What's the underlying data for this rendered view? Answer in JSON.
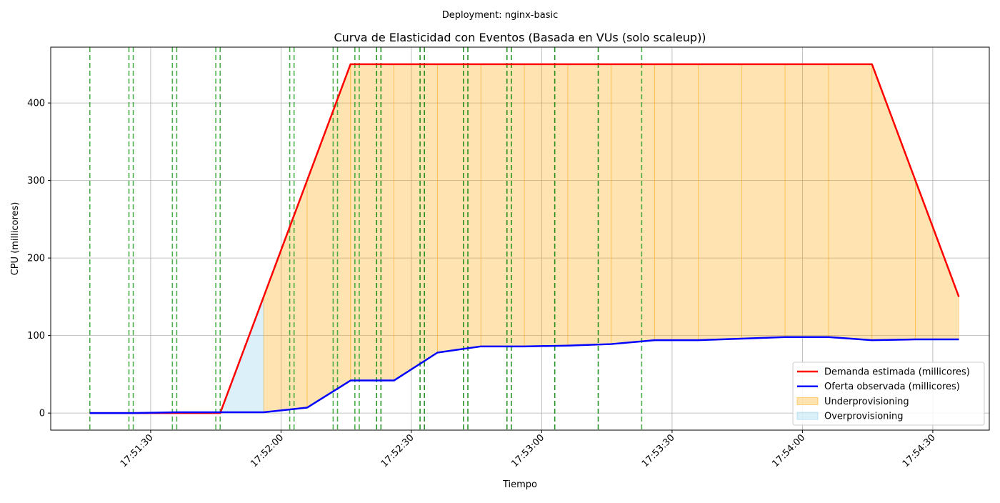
{
  "suptitle": "Deployment: nginx-basic",
  "chart_data": {
    "type": "line",
    "title": "Curva de Elasticidad con Eventos (Basada en VUs (solo scaleup))",
    "xlabel": "Tiempo",
    "ylabel": "CPU (millicores)",
    "x_range": [
      "17:51:07",
      "17:54:43"
    ],
    "y_range": [
      -22,
      472
    ],
    "y_ticks": [
      0,
      100,
      200,
      300,
      400
    ],
    "x_ticks": [
      "17:51:30",
      "17:52:00",
      "17:52:30",
      "17:53:00",
      "17:53:30",
      "17:54:00",
      "17:54:30"
    ],
    "grid": true,
    "legend_position": "lower right",
    "series": [
      {
        "name": "Demanda estimada (millicores)",
        "color": "#ff0000",
        "points": [
          [
            "17:51:16",
            0
          ],
          [
            "17:51:26",
            0
          ],
          [
            "17:51:36",
            0
          ],
          [
            "17:51:46",
            0
          ],
          [
            "17:51:56",
            150
          ],
          [
            "17:52:06",
            300
          ],
          [
            "17:52:16",
            450
          ],
          [
            "17:52:26",
            450
          ],
          [
            "17:52:36",
            450
          ],
          [
            "17:52:46",
            450
          ],
          [
            "17:52:56",
            450
          ],
          [
            "17:53:06",
            450
          ],
          [
            "17:53:16",
            450
          ],
          [
            "17:53:26",
            450
          ],
          [
            "17:53:36",
            450
          ],
          [
            "17:53:46",
            450
          ],
          [
            "17:53:56",
            450
          ],
          [
            "17:54:06",
            450
          ],
          [
            "17:54:16",
            450
          ],
          [
            "17:54:26",
            300
          ],
          [
            "17:54:36",
            150
          ]
        ]
      },
      {
        "name": "Oferta observada (millicores)",
        "color": "#0000ff",
        "points": [
          [
            "17:51:16",
            0
          ],
          [
            "17:51:26",
            0
          ],
          [
            "17:51:36",
            1
          ],
          [
            "17:51:46",
            1
          ],
          [
            "17:51:56",
            1
          ],
          [
            "17:52:06",
            7
          ],
          [
            "17:52:16",
            42
          ],
          [
            "17:52:26",
            42
          ],
          [
            "17:52:36",
            78
          ],
          [
            "17:52:46",
            86
          ],
          [
            "17:52:56",
            86
          ],
          [
            "17:53:06",
            87
          ],
          [
            "17:53:16",
            89
          ],
          [
            "17:53:26",
            94
          ],
          [
            "17:53:36",
            94
          ],
          [
            "17:53:46",
            96
          ],
          [
            "17:53:56",
            98
          ],
          [
            "17:54:06",
            98
          ],
          [
            "17:54:16",
            94
          ],
          [
            "17:54:26",
            95
          ],
          [
            "17:54:36",
            95
          ]
        ]
      }
    ],
    "areas": [
      {
        "name": "Underprovisioning",
        "color": "#ffa500",
        "opacity": 0.3
      },
      {
        "name": "Overprovisioning",
        "color": "#87ceeb",
        "opacity": 0.3
      }
    ],
    "event_lines": {
      "style": "dashed",
      "colors": {
        "green": "#008000",
        "lime": "#2ca02c"
      },
      "events": [
        [
          "17:51:16",
          "lime"
        ],
        [
          "17:51:25",
          "lime"
        ],
        [
          "17:51:26",
          "lime"
        ],
        [
          "17:51:35",
          "lime"
        ],
        [
          "17:51:36",
          "lime"
        ],
        [
          "17:51:45",
          "lime"
        ],
        [
          "17:51:46",
          "lime"
        ],
        [
          "17:52:02",
          "lime"
        ],
        [
          "17:52:03",
          "lime"
        ],
        [
          "17:52:12",
          "lime"
        ],
        [
          "17:52:13",
          "lime"
        ],
        [
          "17:52:17",
          "lime"
        ],
        [
          "17:52:18",
          "lime"
        ],
        [
          "17:52:22",
          "green"
        ],
        [
          "17:52:23",
          "green"
        ],
        [
          "17:52:32",
          "green"
        ],
        [
          "17:52:33",
          "green"
        ],
        [
          "17:52:42",
          "green"
        ],
        [
          "17:52:43",
          "green"
        ],
        [
          "17:52:52",
          "green"
        ],
        [
          "17:52:53",
          "green"
        ],
        [
          "17:53:03",
          "green"
        ],
        [
          "17:53:13",
          "green"
        ],
        [
          "17:53:23",
          "lime"
        ]
      ]
    }
  }
}
